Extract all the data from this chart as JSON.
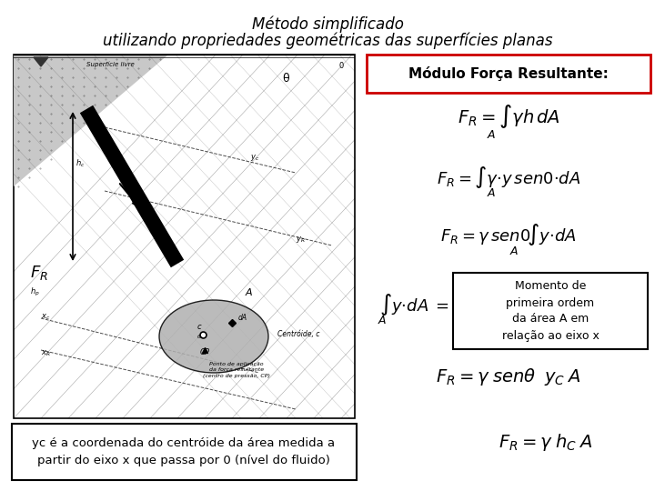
{
  "title_line1": "Método simplificado",
  "title_line2": "utilizando propriedades geométricas das superfícies planas",
  "title_fontsize": 12,
  "bg_color": "#ffffff",
  "modulo_label": "Módulo Força Resultante:",
  "eq1": "$F_R = \\int \\gamma h\\,dA$",
  "eq1_sub": "A",
  "eq2": "$F_R = \\int \\gamma{\\cdot}y\\,sen0{\\cdot}dA$",
  "eq2_sub": "A",
  "eq3": "$F_R = \\gamma\\,sen0\\!\\int y{\\cdot}dA$",
  "eq3_sub": "A",
  "eq4_lhs": "$\\int y{\\cdot}dA =$",
  "eq4_lhs_sub": "A",
  "eq4_box": "Momento de\nprimeira ordem\nda área A em\nrelação ao eixo x",
  "eq5": "$F_R = \\gamma\\;sen\\theta\\;\\;y_C\\;A$",
  "eq6": "$F_R = \\gamma\\;h_C\\;A$",
  "bottom_note": "yc é a coordenada do centróide da área medida a\npartir do eixo x que passa por 0 (nível do fluido)",
  "modulo_box_color": "#cc0000",
  "eq4_box_color": "#000000",
  "note_box_color": "#000000"
}
